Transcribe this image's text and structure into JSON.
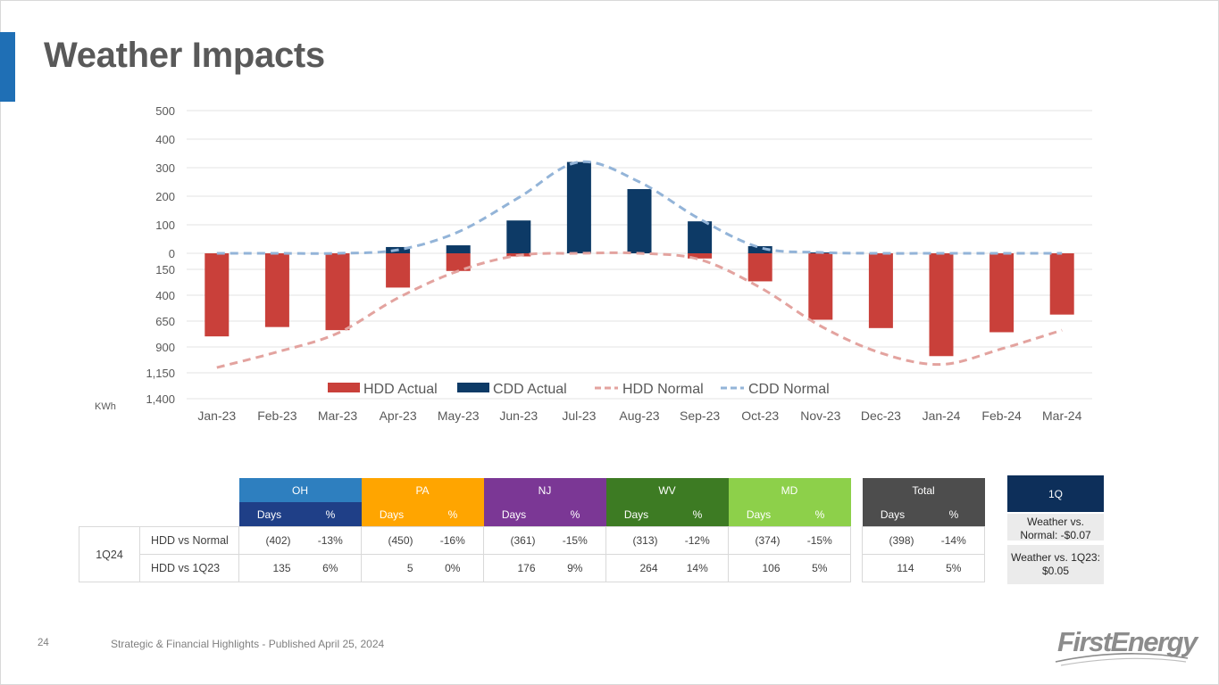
{
  "page": {
    "title": "Weather Impacts",
    "unit_label": "KWh"
  },
  "chart_data": {
    "type": "bar",
    "categories": [
      "Jan-23",
      "Feb-23",
      "Mar-23",
      "Apr-23",
      "May-23",
      "Jun-23",
      "Jul-23",
      "Aug-23",
      "Sep-23",
      "Oct-23",
      "Nov-23",
      "Dec-23",
      "Jan-24",
      "Feb-24",
      "Mar-24"
    ],
    "cdd_axis": {
      "ticks": [
        "500",
        "400",
        "300",
        "200",
        "100",
        "0"
      ],
      "ylim": [
        0,
        500
      ]
    },
    "hdd_axis": {
      "ticks": [
        "150",
        "400",
        "650",
        "900",
        "1,150",
        "1,400"
      ],
      "ylim": [
        0,
        1400
      ],
      "inverted": true
    },
    "series": [
      {
        "name": "HDD Actual",
        "kind": "bar",
        "axis": "hdd",
        "color": "#c9403a",
        "values": [
          800,
          710,
          740,
          330,
          170,
          30,
          0,
          0,
          50,
          270,
          640,
          720,
          990,
          760,
          590
        ]
      },
      {
        "name": "CDD Actual",
        "kind": "bar",
        "axis": "cdd",
        "color": "#0d3a66",
        "values": [
          0,
          0,
          0,
          22,
          28,
          115,
          320,
          225,
          112,
          25,
          3,
          0,
          0,
          0,
          0
        ]
      },
      {
        "name": "HDD Normal",
        "kind": "line",
        "style": "dashed",
        "axis": "hdd",
        "color": "#e3a39f",
        "values": [
          1100,
          950,
          770,
          430,
          170,
          20,
          0,
          0,
          60,
          330,
          700,
          960,
          1070,
          920,
          740
        ]
      },
      {
        "name": "CDD Normal",
        "kind": "line",
        "style": "dashed",
        "axis": "cdd",
        "color": "#93b4d8",
        "values": [
          0,
          0,
          0,
          12,
          75,
          195,
          320,
          250,
          120,
          20,
          3,
          0,
          0,
          0,
          0
        ]
      }
    ],
    "legend_position": "bottom-center",
    "grid": true
  },
  "table": {
    "groups": [
      {
        "name": "OH",
        "color": "#2e7fbf",
        "sub_color": "#1f3f87"
      },
      {
        "name": "PA",
        "color": "#ffa500",
        "sub_color": "#ffa500"
      },
      {
        "name": "NJ",
        "color": "#7b3795",
        "sub_color": "#7b3795"
      },
      {
        "name": "WV",
        "color": "#3d7b23",
        "sub_color": "#3d7b23"
      },
      {
        "name": "MD",
        "color": "#8dd04a",
        "sub_color": "#8dd04a"
      }
    ],
    "total": {
      "name": "Total",
      "color": "#4d4d4d"
    },
    "sub_headers": {
      "days": "Days",
      "pct": "%"
    },
    "group_label": "1Q24",
    "rows": [
      {
        "label": "HDD vs Normal",
        "cells": [
          [
            "(402)",
            "-13%"
          ],
          [
            "(450)",
            "-16%"
          ],
          [
            "(361)",
            "-15%"
          ],
          [
            "(313)",
            "-12%"
          ],
          [
            "(374)",
            "-15%"
          ]
        ],
        "total": [
          "(398)",
          "-14%"
        ]
      },
      {
        "label": "HDD vs 1Q23",
        "cells": [
          [
            "135",
            "6%"
          ],
          [
            "5",
            "0%"
          ],
          [
            "176",
            "9%"
          ],
          [
            "264",
            "14%"
          ],
          [
            "106",
            "5%"
          ]
        ],
        "total": [
          "114",
          "5%"
        ]
      }
    ]
  },
  "quarter_box": {
    "header": "1Q",
    "items": [
      "Weather vs. Normal: -$0.07",
      "Weather vs. 1Q23: $0.05"
    ]
  },
  "footer": {
    "page_number": "24",
    "text": "Strategic & Financial Highlights - Published April 25, 2024",
    "logo": "FirstEnergy"
  }
}
